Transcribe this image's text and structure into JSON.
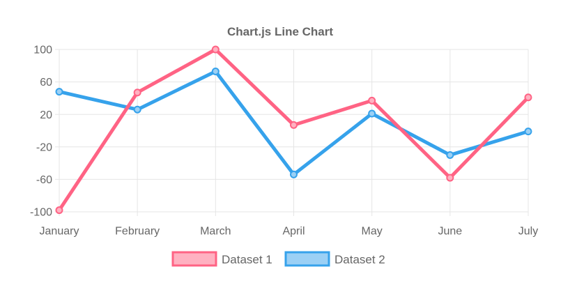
{
  "chart_data": {
    "type": "line",
    "title": "Chart.js Line Chart",
    "categories": [
      "January",
      "February",
      "March",
      "April",
      "May",
      "June",
      "July"
    ],
    "series": [
      {
        "name": "Dataset 1",
        "color": "#FF6384",
        "point_fill": "#FFB1C1",
        "values": [
          -98,
          47,
          100,
          7,
          37,
          -58,
          41
        ]
      },
      {
        "name": "Dataset 2",
        "color": "#36A2EB",
        "point_fill": "#9BD0F5",
        "values": [
          48,
          26,
          73,
          -54,
          21,
          -30,
          -1
        ]
      }
    ],
    "yticks": [
      100,
      60,
      20,
      -20,
      -60,
      -100
    ],
    "ylim": [
      -100,
      100
    ],
    "xlabel": "",
    "ylabel": "",
    "grid": true,
    "legend_position": "bottom",
    "colors": {
      "text": "#666666",
      "grid": "#E5E5E5",
      "background": "#FFFFFF"
    }
  }
}
